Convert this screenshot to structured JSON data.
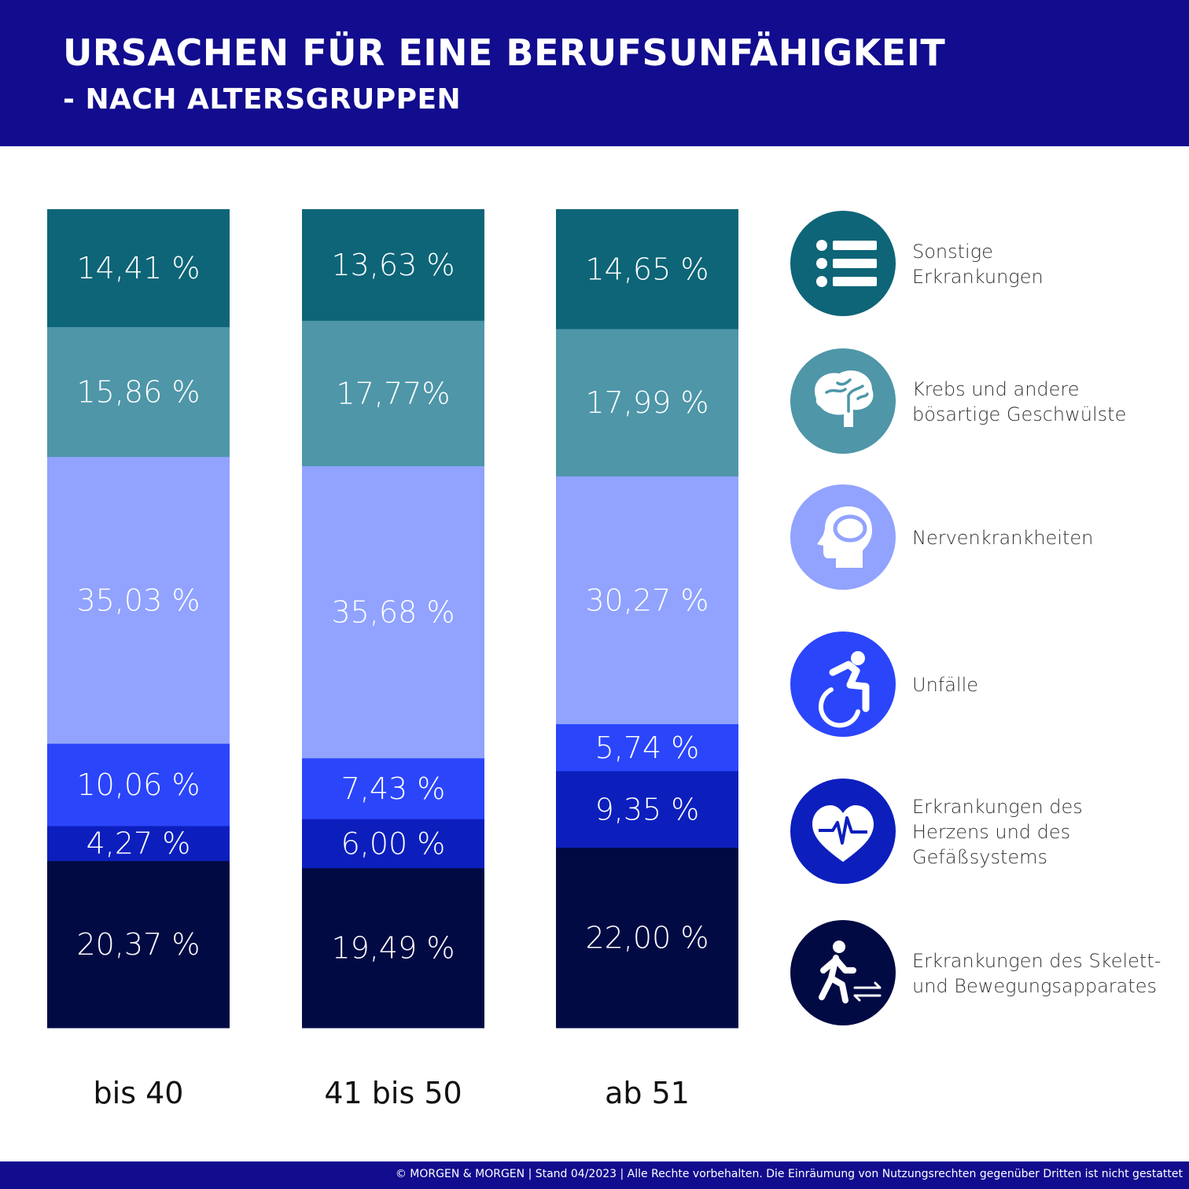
{
  "header": {
    "title": "URSACHEN FÜR EINE BERUFSUNFÄHIGKEIT",
    "subtitle": "- NACH ALTERSGRUPPEN"
  },
  "chart_data": {
    "type": "bar",
    "stacked": true,
    "title": "URSACHEN FÜR EINE BERUFSUNFÄHIGKEIT",
    "subtitle": "- NACH ALTERSGRUPPEN",
    "categories": [
      "bis 40",
      "41 bis 50",
      "ab 51"
    ],
    "unit": "%",
    "stack_order_top_to_bottom": [
      "Sonstige Erkrankungen",
      "Krebs und andere bösartige Geschwülste",
      "Nervenkrankheiten",
      "Unfälle",
      "Erkrankungen des Herzens und des Gefäßsystems",
      "Erkrankungen des Skelett- und Bewegungsapparates"
    ],
    "series": [
      {
        "name": "Sonstige Erkrankungen",
        "color": "#0e6578",
        "values": [
          14.41,
          13.63,
          14.65
        ],
        "labels": [
          "14,41 %",
          "13,63 %",
          "14,65 %"
        ]
      },
      {
        "name": "Krebs und andere bösartige Geschwülste",
        "color": "#4e96a8",
        "values": [
          15.86,
          17.77,
          17.99
        ],
        "labels": [
          "15,86 %",
          "17,77%",
          "17,99 %"
        ]
      },
      {
        "name": "Nervenkrankheiten",
        "color": "#91a3fe",
        "values": [
          35.03,
          35.68,
          30.27
        ],
        "labels": [
          "35,03 %",
          "35,68 %",
          "30,27 %"
        ]
      },
      {
        "name": "Unfälle",
        "color": "#2b45fb",
        "values": [
          10.06,
          7.43,
          5.74
        ],
        "labels": [
          "10,06 %",
          "7,43 %",
          "5,74 %"
        ]
      },
      {
        "name": "Erkrankungen des Herzens und des Gefäßsystems",
        "color": "#0c1fbd",
        "values": [
          4.27,
          6.0,
          9.35
        ],
        "labels": [
          "4,27 %",
          "6,00 %",
          "9,35 %"
        ]
      },
      {
        "name": "Erkrankungen des Skelett- und Bewegungsapparates",
        "color": "#020a44",
        "values": [
          20.37,
          19.49,
          22.0
        ],
        "labels": [
          "20,37 %",
          "19,49 %",
          "22,00 %"
        ]
      }
    ],
    "ylim": [
      0,
      100
    ],
    "grid": false,
    "legend_position": "right"
  },
  "legend": [
    {
      "lines": [
        "Sonstige",
        "Erkrankungen"
      ],
      "icon": "list-icon",
      "color": "#0e6578"
    },
    {
      "lines": [
        "Krebs und andere",
        "bösartige Geschwülste"
      ],
      "icon": "brain-icon",
      "color": "#4e96a8"
    },
    {
      "lines": [
        "Nervenkrankheiten"
      ],
      "icon": "head-icon",
      "color": "#91a3fe"
    },
    {
      "lines": [
        "Unfälle"
      ],
      "icon": "accessibility-icon",
      "color": "#2b45fb"
    },
    {
      "lines": [
        "Erkrankungen des",
        "Herzens und des",
        "Gefäßsystems"
      ],
      "icon": "heart-pulse-icon",
      "color": "#0c1fbd"
    },
    {
      "lines": [
        "Erkrankungen des Skelett-",
        "und Bewegungsapparates"
      ],
      "icon": "walking-icon",
      "color": "#020a44"
    }
  ],
  "footer": {
    "text": "© MORGEN & MORGEN | Stand 04/2023 | Alle Rechte vorbehalten. Die Einräumung von Nutzungsrechten gegenüber Dritten ist nicht gestattet"
  }
}
